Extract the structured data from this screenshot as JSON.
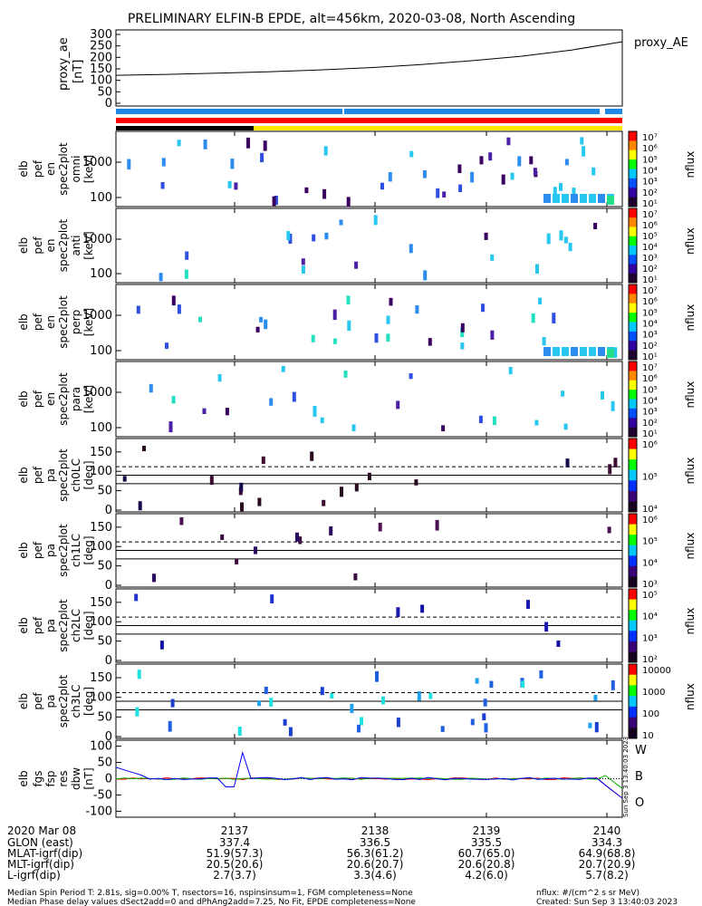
{
  "title": "PRELIMINARY ELFIN-B EPDE, alt=456km, 2020-03-08, North Ascending",
  "proxy_ae": {
    "ylabel": [
      "proxy_ae",
      "[nT]"
    ],
    "yticks": [
      "300",
      "250",
      "200",
      "150",
      "100",
      "50",
      "0"
    ],
    "series_label": "proxy_AE"
  },
  "panels": [
    {
      "ylabel": [
        "elb",
        "pef",
        "en",
        "spec2plot",
        "omni",
        "[keV]"
      ],
      "yticks": [
        "1000",
        "100"
      ],
      "cbar_label": "nflux",
      "cbar_ticks": [
        "10⁷",
        "10⁶",
        "10⁵",
        "10⁴",
        "10³",
        "10²",
        "10¹"
      ]
    },
    {
      "ylabel": [
        "elb",
        "pef",
        "en",
        "spec2plot",
        "anti",
        "[keV]"
      ],
      "yticks": [
        "1000",
        "100"
      ],
      "cbar_label": "nflux",
      "cbar_ticks": [
        "10⁷",
        "10⁶",
        "10⁵",
        "10⁴",
        "10³",
        "10²",
        "10¹"
      ]
    },
    {
      "ylabel": [
        "elb",
        "pef",
        "en",
        "spec2plot",
        "perp",
        "[keV]"
      ],
      "yticks": [
        "1000",
        "100"
      ],
      "cbar_label": "nflux",
      "cbar_ticks": [
        "10⁷",
        "10⁶",
        "10⁵",
        "10⁴",
        "10³",
        "10²",
        "10¹"
      ]
    },
    {
      "ylabel": [
        "elb",
        "pef",
        "en",
        "spec2plot",
        "para",
        "[keV]"
      ],
      "yticks": [
        "1000",
        "100"
      ],
      "cbar_label": "nflux",
      "cbar_ticks": [
        "10⁷",
        "10⁶",
        "10⁵",
        "10⁴",
        "10³",
        "10²",
        "10¹"
      ]
    },
    {
      "ylabel": [
        "elb",
        "pef",
        "pa",
        "spec2plot",
        "ch0LC",
        "[deg]"
      ],
      "yticks": [
        "150",
        "100",
        "50",
        "0"
      ],
      "cbar_label": "nflux",
      "cbar_ticks": [
        "10⁶",
        "10⁵",
        "10⁴"
      ]
    },
    {
      "ylabel": [
        "elb",
        "pef",
        "pa",
        "spec2plot",
        "ch1LC",
        "[deg]"
      ],
      "yticks": [
        "150",
        "100",
        "50",
        "0"
      ],
      "cbar_label": "nflux",
      "cbar_ticks": [
        "10⁶",
        "10⁵",
        "10⁴",
        "10³"
      ]
    },
    {
      "ylabel": [
        "elb",
        "pef",
        "pa",
        "spec2plot",
        "ch2LC",
        "[deg]"
      ],
      "yticks": [
        "150",
        "100",
        "50",
        "0"
      ],
      "cbar_label": "nflux",
      "cbar_ticks": [
        "10⁵",
        "10⁴",
        "10³",
        "10²"
      ]
    },
    {
      "ylabel": [
        "elb",
        "pef",
        "pa",
        "spec2plot",
        "ch3LC",
        "[deg]"
      ],
      "yticks": [
        "150",
        "100",
        "50",
        "0"
      ],
      "cbar_label": "nflux",
      "cbar_ticks": [
        "10000",
        "1000",
        "100",
        "10"
      ]
    },
    {
      "ylabel": [
        "elb",
        "fgs",
        "fsp",
        "res",
        "dbw",
        "[nT]"
      ],
      "yticks": [
        "100",
        "50",
        "0",
        "-50",
        "-100"
      ],
      "legend": [
        "W",
        "B",
        "O"
      ]
    }
  ],
  "footer_rows": [
    {
      "label": "2020 Mar 08",
      "values": [
        "2137",
        "2138",
        "2139",
        "2140"
      ]
    },
    {
      "label": "GLON (east)",
      "values": [
        "337.4",
        "336.5",
        "335.5",
        "334.3"
      ]
    },
    {
      "label": "MLAT-igrf(dip)",
      "values": [
        "51.9(57.3)",
        "56.3(61.2)",
        "60.7(65.0)",
        "64.9(68.8)"
      ]
    },
    {
      "label": "MLT-igrf(dip)",
      "values": [
        "20.5(20.6)",
        "20.6(20.7)",
        "20.6(20.8)",
        "20.7(20.9)"
      ]
    },
    {
      "label": "L-igrf(dip)",
      "values": [
        "2.7(3.7)",
        "3.3(4.6)",
        "4.2(6.0)",
        "5.7(8.2)"
      ]
    }
  ],
  "notes": {
    "line1": "Median Spin Period T: 2.81s, sig=0.00% T, nsectors=16, nspinsinsum=1, FGM completeness=None",
    "line2": "Median Phase delay values dSect2add=0 and dPhAng2add=7.25, No Fit, EPDE completeness=None",
    "units": "nflux: #/(cm^2 s sr MeV)",
    "created": "Created: Sun Sep  3 13:40:03 2023",
    "side_stamp": "Sun Sep  3 13:40:03 2023"
  },
  "chart_data": {
    "type": "heatmap",
    "title": "PRELIMINARY ELFIN-B EPDE, alt=456km, 2020-03-08, North Ascending",
    "x_ticks": [
      "2137",
      "2138",
      "2139",
      "2140"
    ],
    "proxy_ae_series": {
      "x": [
        0,
        0.1,
        0.2,
        0.3,
        0.4,
        0.5,
        0.6,
        0.7,
        0.8,
        0.9,
        1.0
      ],
      "y": [
        122,
        126,
        131,
        137,
        145,
        155,
        168,
        185,
        205,
        232,
        268
      ]
    },
    "energy_panels_ylim_keV": [
      80,
      5000
    ],
    "pitch_angle_ylim_deg": [
      0,
      180
    ],
    "pa_reference_lines_deg": {
      "dashed": 112,
      "solid": [
        90,
        68
      ]
    },
    "fgs_ylim_nT": [
      -110,
      110
    ]
  }
}
